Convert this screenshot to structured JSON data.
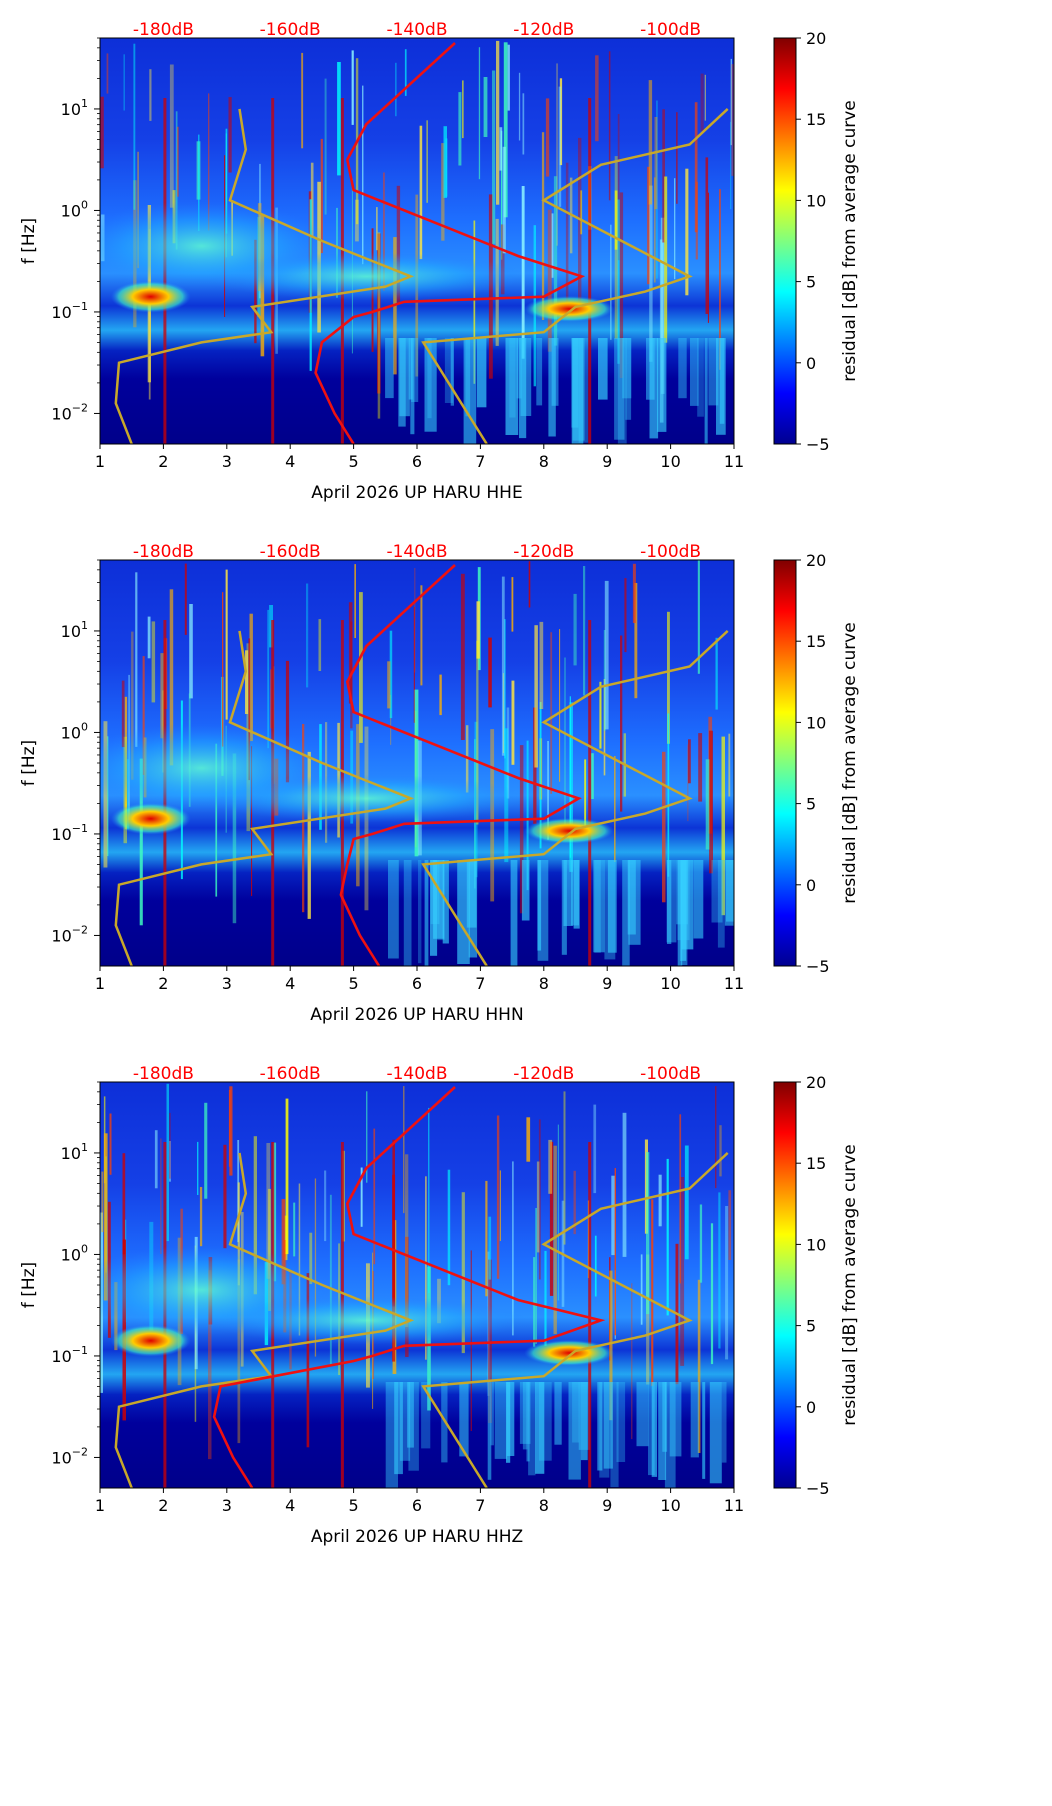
{
  "chart_data": [
    {
      "type": "heatmap",
      "title": "",
      "xlabel": "April 2026 UP HARU  HHE",
      "ylabel": "f [Hz]",
      "xlim": [
        1,
        11
      ],
      "xticks": [
        1,
        2,
        3,
        4,
        5,
        6,
        7,
        8,
        9,
        10,
        11
      ],
      "ylim": [
        0.005,
        50
      ],
      "yscale": "log",
      "yticks": [
        "10^-2",
        "10^-1",
        "10^0",
        "10^1"
      ],
      "colorbar_label": "residual [dB] from average curve",
      "colorbar_range": [
        -5,
        20
      ],
      "colorbar_ticks": [
        -5,
        0,
        5,
        10,
        15,
        20
      ],
      "db_scale_labels": [
        "-180dB",
        "-160dB",
        "-140dB",
        "-120dB",
        "-100dB"
      ],
      "db_scale_positions": [
        2,
        4,
        6,
        8,
        10
      ],
      "red_curve_x_at_low_f": 5.0,
      "red_curve_peak_x": 8.6
    },
    {
      "type": "heatmap",
      "title": "",
      "xlabel": "April 2026 UP HARU  HHN",
      "ylabel": "f [Hz]",
      "xlim": [
        1,
        11
      ],
      "xticks": [
        1,
        2,
        3,
        4,
        5,
        6,
        7,
        8,
        9,
        10,
        11
      ],
      "ylim": [
        0.005,
        50
      ],
      "yscale": "log",
      "yticks": [
        "10^-2",
        "10^-1",
        "10^0",
        "10^1"
      ],
      "colorbar_label": "residual [dB] from average curve",
      "colorbar_range": [
        -5,
        20
      ],
      "colorbar_ticks": [
        -5,
        0,
        5,
        10,
        15,
        20
      ],
      "db_scale_labels": [
        "-180dB",
        "-160dB",
        "-140dB",
        "-120dB",
        "-100dB"
      ],
      "db_scale_positions": [
        2,
        4,
        6,
        8,
        10
      ],
      "red_curve_x_at_low_f": 5.4,
      "red_curve_peak_x": 8.55
    },
    {
      "type": "heatmap",
      "title": "",
      "xlabel": "April 2026 UP HARU  HHZ",
      "ylabel": "f [Hz]",
      "xlim": [
        1,
        11
      ],
      "xticks": [
        1,
        2,
        3,
        4,
        5,
        6,
        7,
        8,
        9,
        10,
        11
      ],
      "ylim": [
        0.005,
        50
      ],
      "yscale": "log",
      "yticks": [
        "10^-2",
        "10^-1",
        "10^0",
        "10^1"
      ],
      "colorbar_label": "residual [dB] from average curve",
      "colorbar_range": [
        -5,
        20
      ],
      "colorbar_ticks": [
        -5,
        0,
        5,
        10,
        15,
        20
      ],
      "db_scale_labels": [
        "-180dB",
        "-160dB",
        "-140dB",
        "-120dB",
        "-100dB"
      ],
      "db_scale_positions": [
        2,
        4,
        6,
        8,
        10
      ],
      "red_curve_x_at_low_f": 3.4,
      "red_curve_peak_x": 8.9
    }
  ],
  "colors": {
    "db_label": "#ff0000",
    "red_curve": "#ee1111",
    "nlnm_nhnm_curve": "#c8a82a",
    "background_low": "#00008f"
  }
}
